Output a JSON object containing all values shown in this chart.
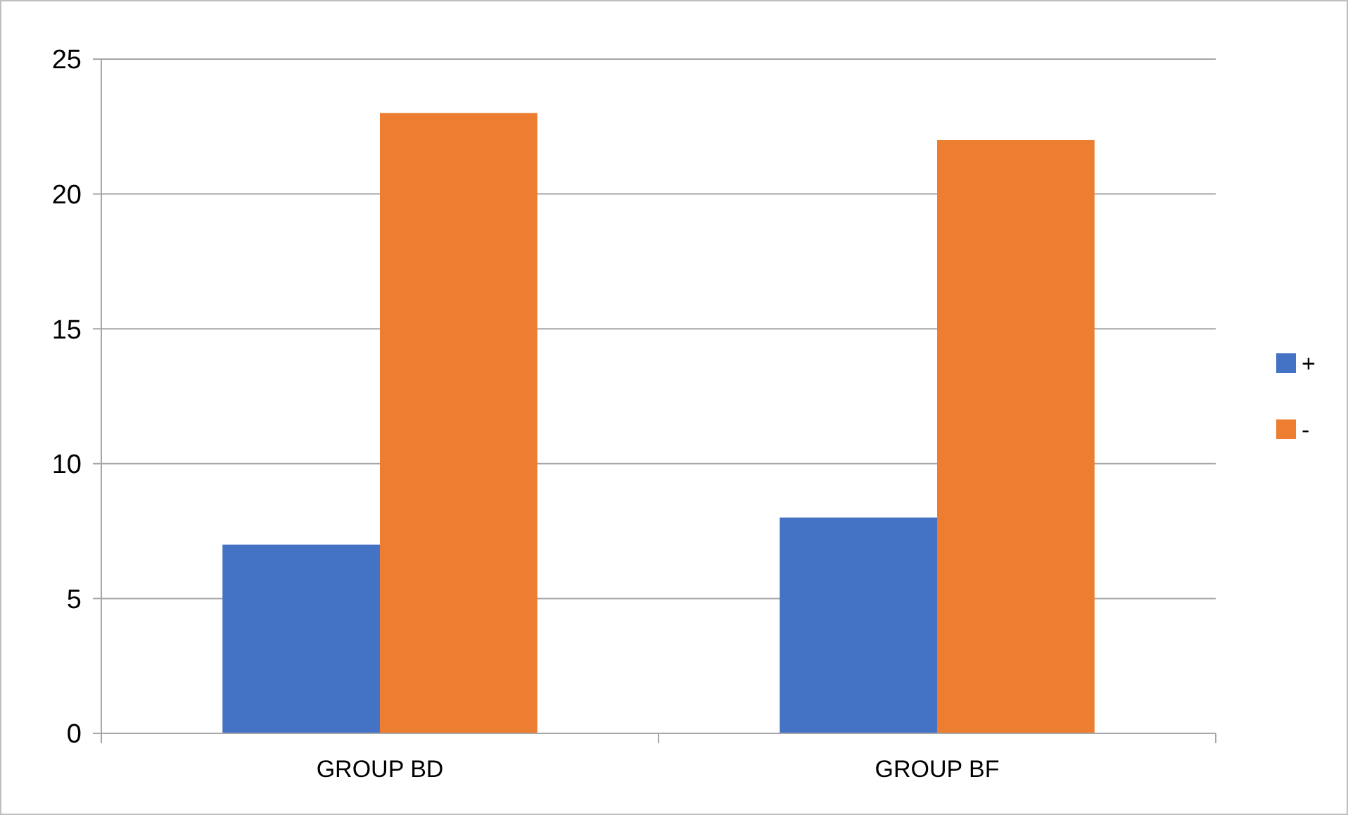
{
  "chart_data": {
    "type": "bar",
    "categories": [
      "GROUP BD",
      "GROUP BF"
    ],
    "series": [
      {
        "name": "+",
        "color": "#4472c4",
        "values": [
          7,
          8
        ]
      },
      {
        "name": "-",
        "color": "#ed7d31",
        "values": [
          23,
          22
        ]
      }
    ],
    "ylim": [
      0,
      25
    ],
    "yticks": [
      0,
      5,
      10,
      15,
      20,
      25
    ],
    "grid": "y",
    "legend": "right"
  }
}
